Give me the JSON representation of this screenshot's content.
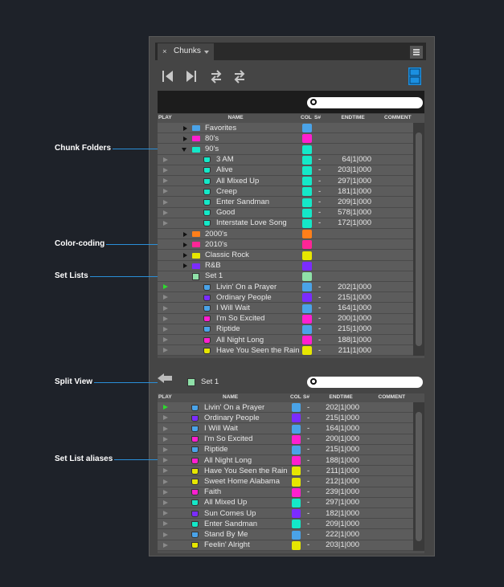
{
  "panel": {
    "tab": "Chunks"
  },
  "annotations": [
    "Chunk Folders",
    "Color-coding",
    "Set Lists",
    "Split View",
    "Set List aliases"
  ],
  "top_list": {
    "columns": [
      "PLAY",
      "NAME",
      "COL",
      "S#",
      "ENDTIME",
      "COMMENT"
    ],
    "rows": [
      {
        "name": "Favorites",
        "color": "#4aa3e8",
        "icon": "folder",
        "depth": 0,
        "expanded": false
      },
      {
        "name": "80's",
        "color": "#ff1fd0",
        "icon": "folder",
        "depth": 0,
        "expanded": false
      },
      {
        "name": "90's",
        "color": "#14e8c8",
        "icon": "folder",
        "depth": 0,
        "expanded": true
      },
      {
        "name": "3 AM",
        "color": "#14e8c8",
        "icon": "song",
        "depth": 1,
        "snum": "-",
        "endtime": "64|1|000"
      },
      {
        "name": "Alive",
        "color": "#14e8c8",
        "icon": "song",
        "depth": 1,
        "snum": "-",
        "endtime": "203|1|000"
      },
      {
        "name": "All Mixed Up",
        "color": "#14e8c8",
        "icon": "song",
        "depth": 1,
        "snum": "-",
        "endtime": "297|1|000"
      },
      {
        "name": "Creep",
        "color": "#14e8c8",
        "icon": "song",
        "depth": 1,
        "snum": "-",
        "endtime": "181|1|000"
      },
      {
        "name": "Enter Sandman",
        "color": "#14e8c8",
        "icon": "song",
        "depth": 1,
        "snum": "-",
        "endtime": "209|1|000"
      },
      {
        "name": "Good",
        "color": "#14e8c8",
        "icon": "song",
        "depth": 1,
        "snum": "-",
        "endtime": "578|1|000"
      },
      {
        "name": "Interstate Love Song",
        "color": "#14e8c8",
        "icon": "song",
        "depth": 1,
        "snum": "-",
        "endtime": "172|1|000"
      },
      {
        "name": "2000's",
        "color": "#ff7f1a",
        "icon": "folder",
        "depth": 0,
        "expanded": false
      },
      {
        "name": "2010's",
        "color": "#ff2596",
        "icon": "folder",
        "depth": 0,
        "expanded": false
      },
      {
        "name": "Classic Rock",
        "color": "#e6e600",
        "icon": "folder",
        "depth": 0,
        "expanded": false
      },
      {
        "name": "R&B",
        "color": "#7b2cff",
        "icon": "folder",
        "depth": 0,
        "expanded": false
      },
      {
        "name": "Set 1",
        "color": "#8fe0a8",
        "icon": "setlist",
        "depth": 0
      },
      {
        "name": "Livin' On a Prayer",
        "color": "#4aa3e8",
        "icon": "song",
        "depth": 1,
        "snum": "-",
        "endtime": "202|1|000",
        "playing": true
      },
      {
        "name": "Ordinary People",
        "color": "#7b2cff",
        "icon": "song",
        "depth": 1,
        "snum": "-",
        "endtime": "215|1|000"
      },
      {
        "name": "I Will Wait",
        "color": "#4aa3e8",
        "icon": "song",
        "depth": 1,
        "snum": "-",
        "endtime": "164|1|000"
      },
      {
        "name": "I'm So Excited",
        "color": "#ff1fd0",
        "icon": "song",
        "depth": 1,
        "snum": "-",
        "endtime": "200|1|000"
      },
      {
        "name": "Riptide",
        "color": "#4aa3e8",
        "icon": "song",
        "depth": 1,
        "snum": "-",
        "endtime": "215|1|000"
      },
      {
        "name": "All Night Long",
        "color": "#ff1fd0",
        "icon": "song",
        "depth": 1,
        "snum": "-",
        "endtime": "188|1|000"
      },
      {
        "name": "Have You Seen the Rain",
        "color": "#e6e600",
        "icon": "song",
        "depth": 1,
        "snum": "-",
        "endtime": "211|1|000"
      }
    ]
  },
  "split_view": {
    "title": "Set 1",
    "columns": [
      "PLAY",
      "NAME",
      "COL",
      "S#",
      "ENDTIME",
      "COMMENT"
    ],
    "rows": [
      {
        "name": "Livin' On a Prayer",
        "color": "#4aa3e8",
        "icon": "song",
        "snum": "-",
        "endtime": "202|1|000",
        "playing": true
      },
      {
        "name": "Ordinary People",
        "color": "#7b2cff",
        "icon": "song",
        "snum": "-",
        "endtime": "215|1|000"
      },
      {
        "name": "I Will Wait",
        "color": "#4aa3e8",
        "icon": "song",
        "snum": "-",
        "endtime": "164|1|000"
      },
      {
        "name": "I'm So Excited",
        "color": "#ff1fd0",
        "icon": "song",
        "snum": "-",
        "endtime": "200|1|000"
      },
      {
        "name": "Riptide",
        "color": "#4aa3e8",
        "icon": "song",
        "snum": "-",
        "endtime": "215|1|000"
      },
      {
        "name": "All Night Long",
        "color": "#ff1fd0",
        "icon": "song",
        "snum": "-",
        "endtime": "188|1|000"
      },
      {
        "name": "Have You Seen the Rain",
        "color": "#e6e600",
        "icon": "song",
        "snum": "-",
        "endtime": "211|1|000"
      },
      {
        "name": "Sweet Home Alabama",
        "color": "#e6e600",
        "icon": "song",
        "snum": "-",
        "endtime": "212|1|000"
      },
      {
        "name": "Faith",
        "color": "#ff1fd0",
        "icon": "song",
        "snum": "-",
        "endtime": "239|1|000"
      },
      {
        "name": "All Mixed Up",
        "color": "#14e8c8",
        "icon": "song",
        "snum": "-",
        "endtime": "297|1|000"
      },
      {
        "name": "Sun Comes Up",
        "color": "#7b2cff",
        "icon": "song",
        "snum": "-",
        "endtime": "182|1|000"
      },
      {
        "name": "Enter Sandman",
        "color": "#14e8c8",
        "icon": "song",
        "snum": "-",
        "endtime": "209|1|000"
      },
      {
        "name": "Stand By Me",
        "color": "#4aa3e8",
        "icon": "song",
        "snum": "-",
        "endtime": "222|1|000"
      },
      {
        "name": "Feelin' Alright",
        "color": "#e6e600",
        "icon": "song",
        "snum": "-",
        "endtime": "203|1|000"
      }
    ]
  }
}
